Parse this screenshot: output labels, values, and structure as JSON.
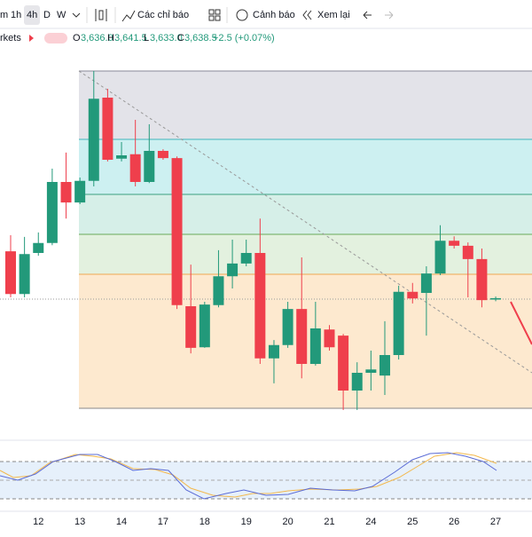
{
  "toolbar": {
    "cut_interval": "m",
    "intervals": [
      "1h",
      "4h",
      "D",
      "W"
    ],
    "indicators": "Các chỉ báo",
    "alert": "Cảnh báo",
    "replay": "Xem lại"
  },
  "legend": {
    "symbol": "rkets",
    "open_label": "O",
    "open": "3,636.0",
    "high_label": "H",
    "high": "3,641.5",
    "low_label": "L",
    "low": "3,633.0",
    "close_label": "C",
    "close": "3,638.5",
    "change": "+2.5 (+0.07%)"
  },
  "chart_data": {
    "type": "candlestick",
    "up_color": "#22997a",
    "down_color": "#ef3f4c",
    "ylim": [
      3392,
      4080
    ],
    "categories": [
      null,
      null,
      "12",
      null,
      null,
      "13",
      null,
      null,
      "14",
      null,
      null,
      "17",
      null,
      null,
      "18",
      null,
      null,
      "19",
      null,
      null,
      "20",
      null,
      null,
      "21",
      null,
      null,
      "24",
      null,
      null,
      "25",
      null,
      null,
      "26",
      null,
      null,
      "27"
    ],
    "open": [
      3723,
      3646,
      3720,
      3738,
      3848,
      3811,
      3850,
      4000,
      3890,
      3898,
      3848,
      3904,
      3891,
      3624,
      3550,
      3626,
      3678,
      3701,
      3720,
      3530,
      3554,
      3619,
      3520,
      3582,
      3571,
      3472,
      3504,
      3499,
      3536,
      3650,
      3648,
      3683,
      3742,
      3733,
      3709,
      3636
    ],
    "high": [
      3752,
      3749,
      3757,
      3872,
      3901,
      3856,
      4048,
      4016,
      3920,
      3960,
      3952,
      3907,
      3894,
      3699,
      3632,
      3725,
      3744,
      3744,
      3782,
      3563,
      3632,
      3712,
      3632,
      3590,
      3574,
      3523,
      3544,
      3597,
      3661,
      3666,
      3696,
      3770,
      3750,
      3739,
      3728,
      3641.5
    ],
    "low": [
      3640,
      3640,
      3715,
      3734,
      3782,
      3808,
      3840,
      3885,
      3885,
      3840,
      3846,
      3888,
      3619,
      3539,
      3549,
      3622,
      3656,
      3696,
      3520,
      3485,
      3549,
      3494,
      3517,
      3544,
      3437,
      3437,
      3472,
      3464,
      3528,
      3629,
      3571,
      3680,
      3728,
      3640,
      3622,
      3633
    ],
    "close": [
      3646,
      3718,
      3738,
      3848,
      3811,
      3850,
      3998,
      3888,
      3896,
      3848,
      3904,
      3891,
      3626,
      3549,
      3627,
      3678,
      3701,
      3720,
      3530,
      3554,
      3619,
      3520,
      3584,
      3550,
      3472,
      3504,
      3510,
      3536,
      3650,
      3638,
      3683,
      3742,
      3733,
      3709,
      3635,
      3638.5
    ]
  }
}
